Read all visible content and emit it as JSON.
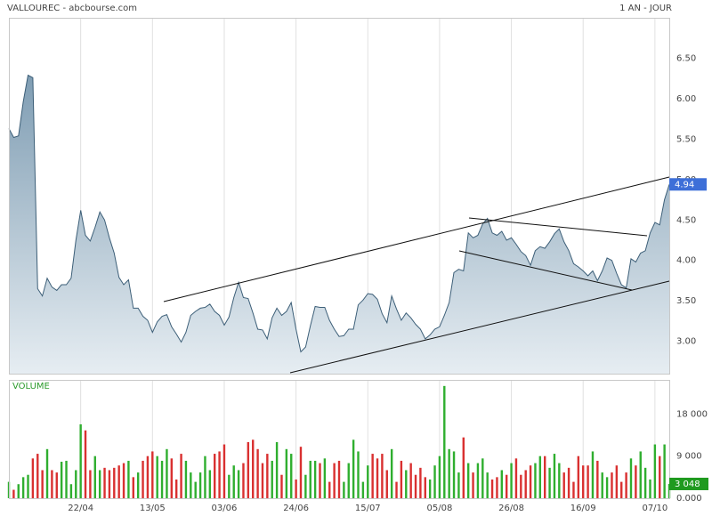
{
  "title": "VALLOUREC - abcbourse.com",
  "period": "1 AN - JOUR",
  "chart_data": [
    {
      "type": "area",
      "color": "#3d5f78",
      "fill_top": "#7f9db3",
      "fill_bottom": "#e6edf2",
      "xlim": [
        0,
        138
      ],
      "xticks": [
        {
          "value": 15,
          "label": "22/04"
        },
        {
          "value": 30,
          "label": "13/05"
        },
        {
          "value": 45,
          "label": "03/06"
        },
        {
          "value": 60,
          "label": "24/06"
        },
        {
          "value": 75,
          "label": "15/07"
        },
        {
          "value": 90,
          "label": "05/08"
        },
        {
          "value": 105,
          "label": "26/08"
        },
        {
          "value": 120,
          "label": "16/09"
        },
        {
          "value": 135,
          "label": "07/10"
        }
      ],
      "ylim": [
        2.6,
        7.0
      ],
      "yticks": [
        {
          "value": 3,
          "label": "3.00"
        },
        {
          "value": 3.5,
          "label": "3.50"
        },
        {
          "value": 4,
          "label": "4.00"
        },
        {
          "value": 4.5,
          "label": "4.50"
        },
        {
          "value": 5,
          "label": "5.00"
        },
        {
          "value": 5.5,
          "label": "5.50"
        },
        {
          "value": 6,
          "label": "6.00"
        },
        {
          "value": 6.5,
          "label": "6.50"
        }
      ],
      "grid": true,
      "last_label": "4.94",
      "last_label_color": "#3d6fd8",
      "values": [
        5.63,
        5.52,
        5.54,
        5.96,
        6.29,
        6.26,
        3.65,
        3.56,
        3.78,
        3.67,
        3.63,
        3.7,
        3.7,
        3.78,
        4.25,
        4.62,
        4.31,
        4.24,
        4.41,
        4.6,
        4.5,
        4.28,
        4.09,
        3.79,
        3.7,
        3.76,
        3.41,
        3.41,
        3.31,
        3.26,
        3.11,
        3.24,
        3.31,
        3.33,
        3.18,
        3.09,
        2.99,
        3.11,
        3.32,
        3.37,
        3.41,
        3.42,
        3.46,
        3.37,
        3.32,
        3.2,
        3.3,
        3.54,
        3.73,
        3.54,
        3.53,
        3.35,
        3.15,
        3.14,
        3.03,
        3.29,
        3.41,
        3.32,
        3.37,
        3.48,
        3.15,
        2.87,
        2.93,
        3.19,
        3.43,
        3.42,
        3.42,
        3.26,
        3.15,
        3.06,
        3.07,
        3.15,
        3.15,
        3.45,
        3.51,
        3.59,
        3.58,
        3.52,
        3.34,
        3.23,
        3.56,
        3.4,
        3.26,
        3.35,
        3.29,
        3.21,
        3.15,
        3.03,
        3.08,
        3.15,
        3.18,
        3.32,
        3.48,
        3.85,
        3.89,
        3.87,
        4.34,
        4.28,
        4.31,
        4.45,
        4.52,
        4.34,
        4.31,
        4.36,
        4.25,
        4.28,
        4.2,
        4.11,
        4.06,
        3.94,
        4.12,
        4.17,
        4.15,
        4.23,
        4.33,
        4.39,
        4.23,
        4.12,
        3.96,
        3.92,
        3.87,
        3.81,
        3.87,
        3.75,
        3.87,
        4.03,
        4.0,
        3.84,
        3.7,
        3.66,
        4.02,
        3.98,
        4.09,
        4.12,
        4.34,
        4.47,
        4.44,
        4.75,
        4.94
      ]
    },
    {
      "type": "bar",
      "title": "VOLUME",
      "title_color": "#2a9a2a",
      "up_color": "#2fae2f",
      "down_color": "#d93030",
      "xlim": [
        0,
        138
      ],
      "ylim": [
        0,
        25300
      ],
      "yticks": [
        {
          "value": 0,
          "label": "0.000"
        },
        {
          "value": 9000,
          "label": "9 000"
        },
        {
          "value": 18000,
          "label": "18 000"
        }
      ],
      "grid": true,
      "last_label": "3 048",
      "last_label_color": "#1f9a1f",
      "values": [
        3500,
        1800,
        3000,
        4500,
        5000,
        8500,
        9500,
        6000,
        10500,
        6000,
        5500,
        7800,
        8000,
        3000,
        6000,
        15800,
        14500,
        6000,
        9000,
        6000,
        6500,
        6000,
        6500,
        7000,
        7500,
        8000,
        4500,
        5500,
        8000,
        9000,
        10000,
        9000,
        8000,
        10500,
        8500,
        4000,
        9500,
        8000,
        5500,
        3500,
        5500,
        9000,
        6000,
        9500,
        10000,
        11500,
        5000,
        7000,
        6000,
        7500,
        12000,
        12500,
        10500,
        7500,
        9500,
        8000,
        12000,
        5000,
        10500,
        9500,
        4000,
        11000,
        5000,
        8000,
        8000,
        7500,
        8500,
        3500,
        7500,
        8000,
        3500,
        7500,
        12500,
        10000,
        3500,
        7000,
        9500,
        8500,
        9500,
        6000,
        10500,
        3500,
        8000,
        6000,
        7500,
        5000,
        6500,
        4500,
        4000,
        7000,
        9000,
        24000,
        10500,
        10000,
        5500,
        13000,
        7500,
        5500,
        7500,
        8500,
        5500,
        4000,
        4500,
        6000,
        5000,
        7500,
        8500,
        5000,
        6000,
        7000,
        7500,
        9000,
        9000,
        6500,
        9500,
        7500,
        5500,
        6500,
        3500,
        9000,
        7000,
        7000,
        10000,
        8000,
        5500,
        4500,
        5500,
        7000,
        3500,
        5500,
        8500,
        7000,
        10000,
        6500,
        4000,
        11500,
        9000,
        11500,
        3048
      ]
    }
  ]
}
